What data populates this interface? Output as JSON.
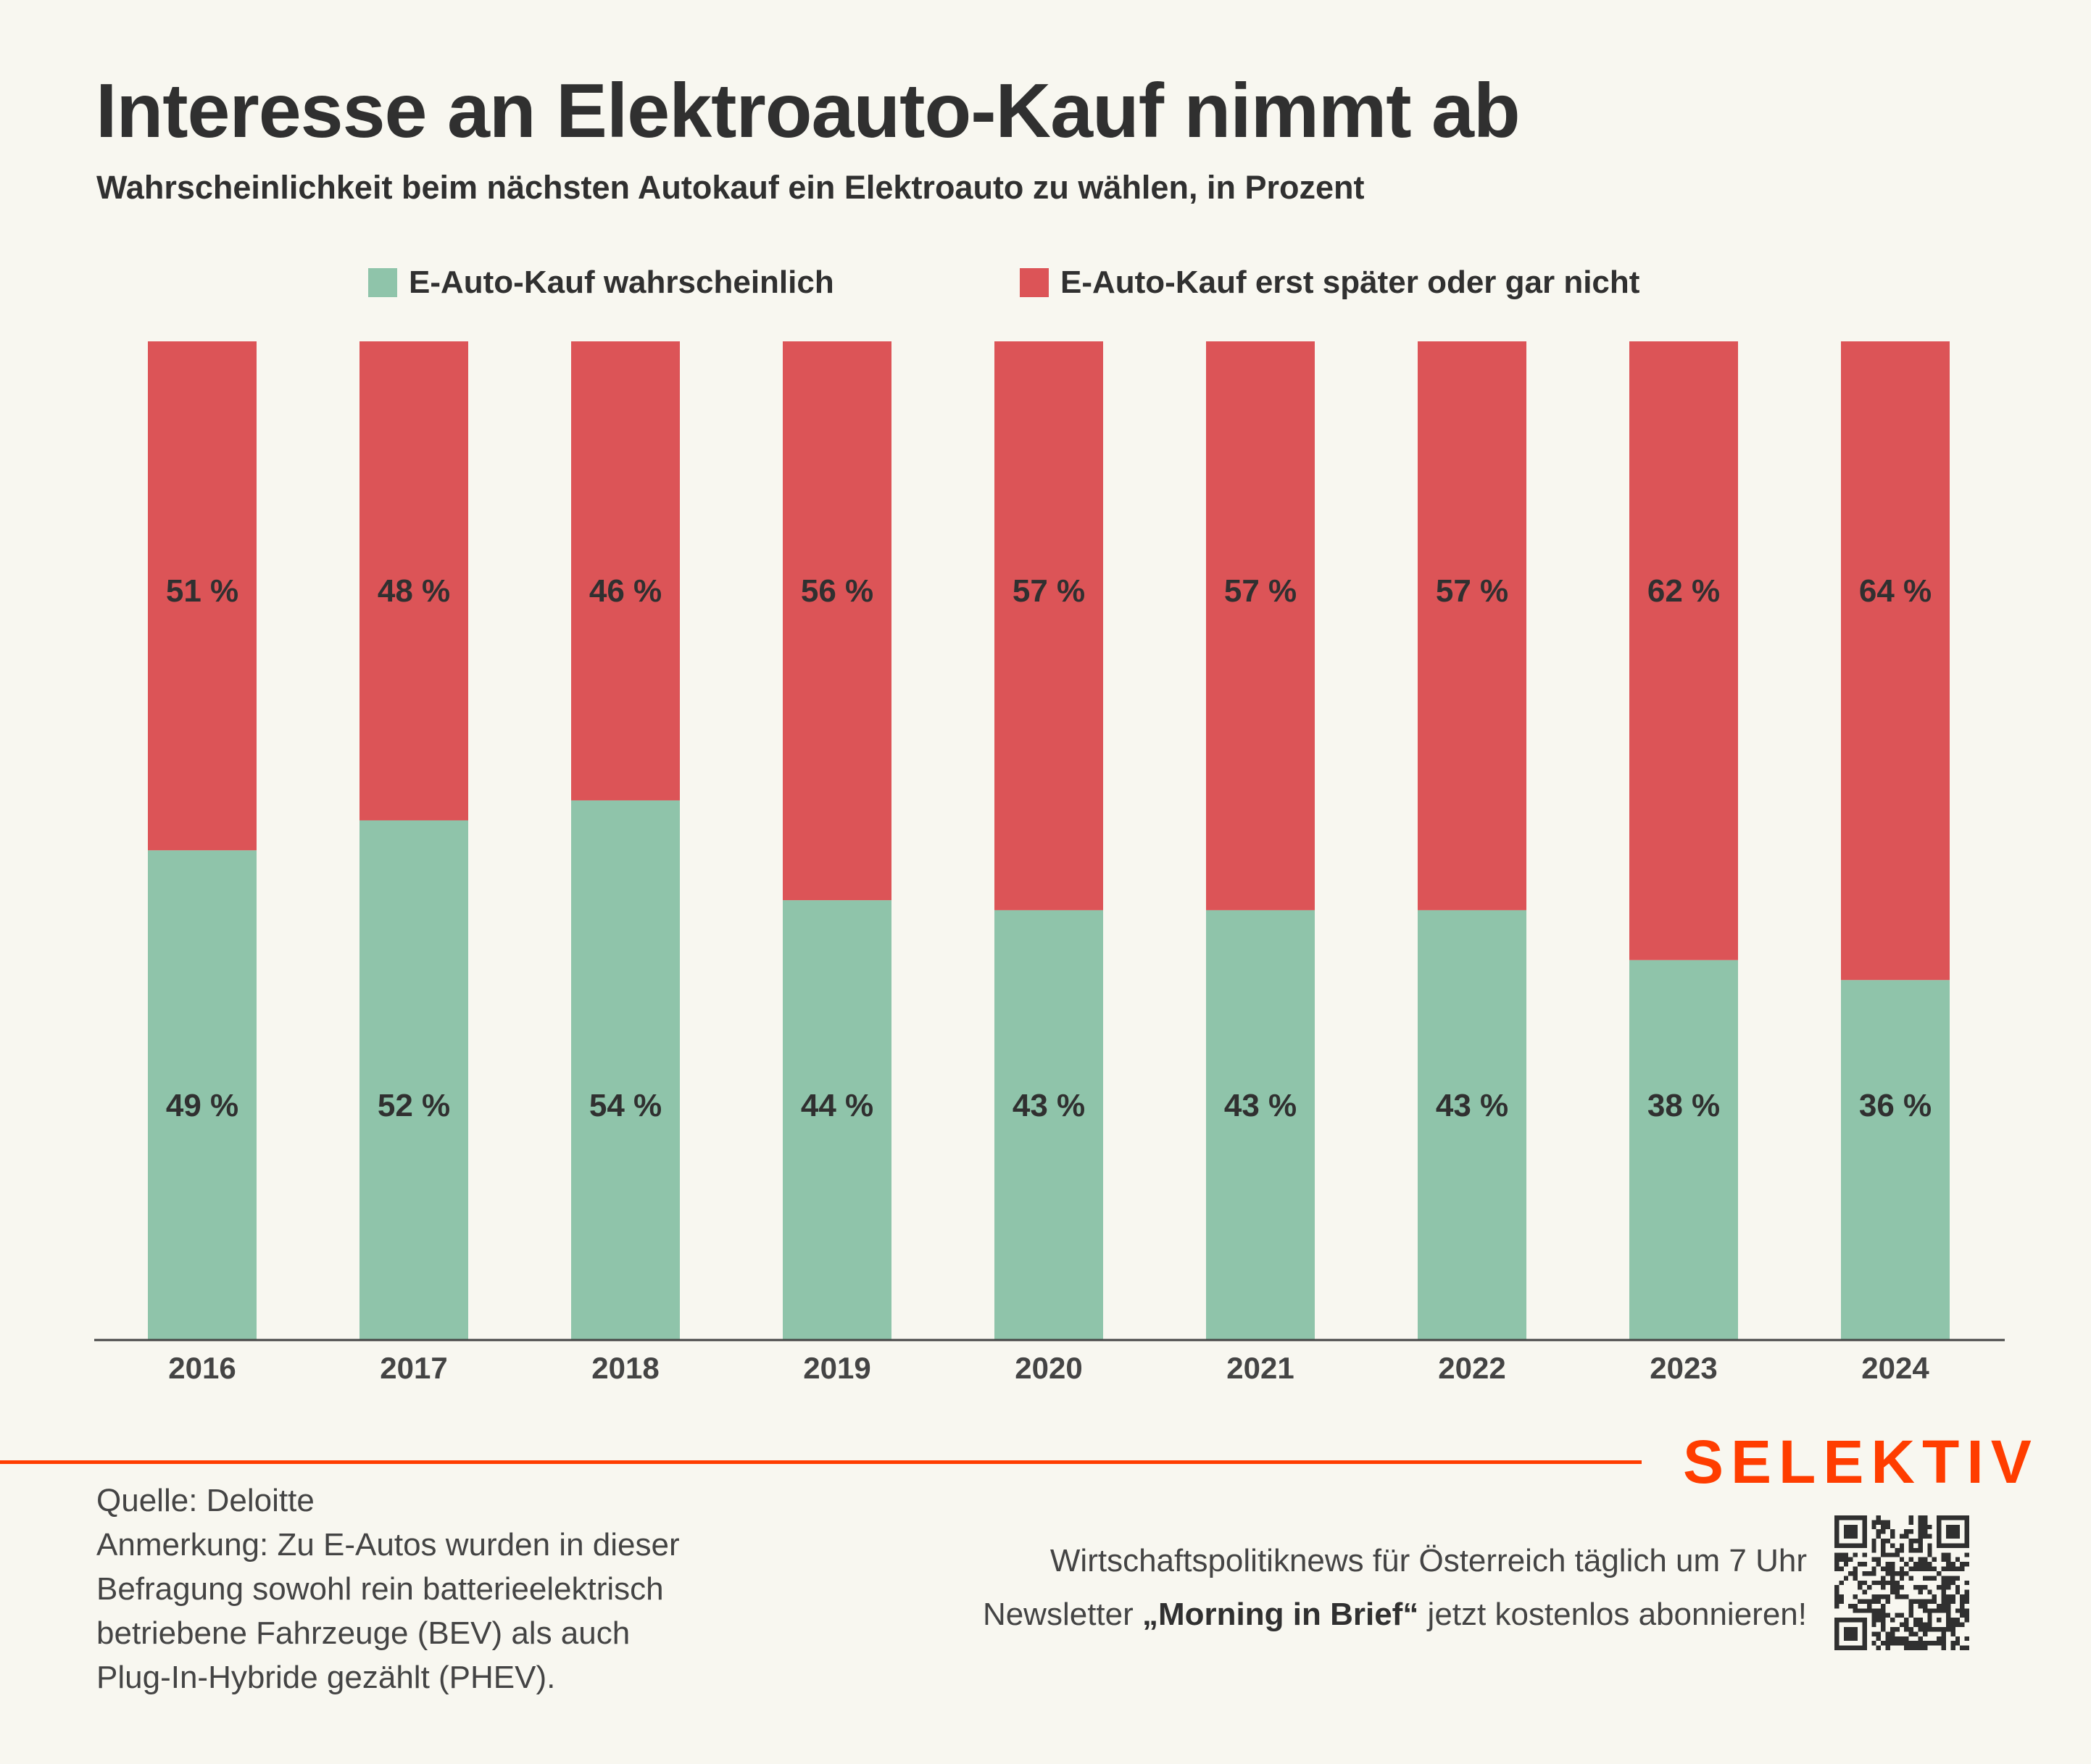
{
  "header": {
    "title": "Interesse an Elektroauto-Kauf nimmt ab",
    "subtitle": "Wahrscheinlichkeit beim nächsten Autokauf ein Elektroauto zu wählen, in Prozent"
  },
  "legend": [
    {
      "label": "E-Auto-Kauf wahrscheinlich",
      "color": "#8fc4aa"
    },
    {
      "label": "E-Auto-Kauf erst später oder gar nicht",
      "color": "#dc5457"
    }
  ],
  "chart_data": {
    "type": "bar",
    "stacked": true,
    "title": "Interesse an Elektroauto-Kauf nimmt ab",
    "subtitle": "Wahrscheinlichkeit beim nächsten Autokauf ein Elektroauto zu wählen, in Prozent",
    "xlabel": "",
    "ylabel": "",
    "ylim": [
      0,
      100
    ],
    "grid": false,
    "legend_position": "top-center",
    "categories": [
      "2016",
      "2017",
      "2018",
      "2019",
      "2020",
      "2021",
      "2022",
      "2023",
      "2024"
    ],
    "series": [
      {
        "name": "E-Auto-Kauf wahrscheinlich",
        "color": "#8fc4aa",
        "values": [
          49,
          52,
          54,
          44,
          43,
          43,
          43,
          38,
          36
        ],
        "labels": [
          "49 %",
          "52 %",
          "54 %",
          "44 %",
          "43 %",
          "43 %",
          "43 %",
          "38 %",
          "36 %"
        ]
      },
      {
        "name": "E-Auto-Kauf erst später oder gar nicht",
        "color": "#dc5457",
        "values": [
          51,
          48,
          46,
          56,
          57,
          57,
          57,
          62,
          64
        ],
        "labels": [
          "51 %",
          "48 %",
          "46 %",
          "56 %",
          "57 %",
          "57 %",
          "57 %",
          "62 %",
          "64 %"
        ]
      }
    ]
  },
  "footer": {
    "brand": "SELEKTIV",
    "brand_color": "#ff3d00",
    "source": "Quelle: Deloitte",
    "note_lines": [
      "Anmerkung: Zu E-Autos wurden in dieser",
      "Befragung sowohl rein batterieelektrisch",
      "betriebene Fahrzeuge (BEV) als auch",
      "Plug-In-Hybride gezählt (PHEV)."
    ],
    "promo_line1": "Wirtschaftspolitiknews für Österreich täglich um 7 Uhr",
    "promo_line2_pre": "Newsletter ",
    "promo_line2_bold": "„Morning in Brief“",
    "promo_line2_post": " jetzt kostenlos abonnieren!",
    "qr_icon": "qr-code-icon"
  }
}
